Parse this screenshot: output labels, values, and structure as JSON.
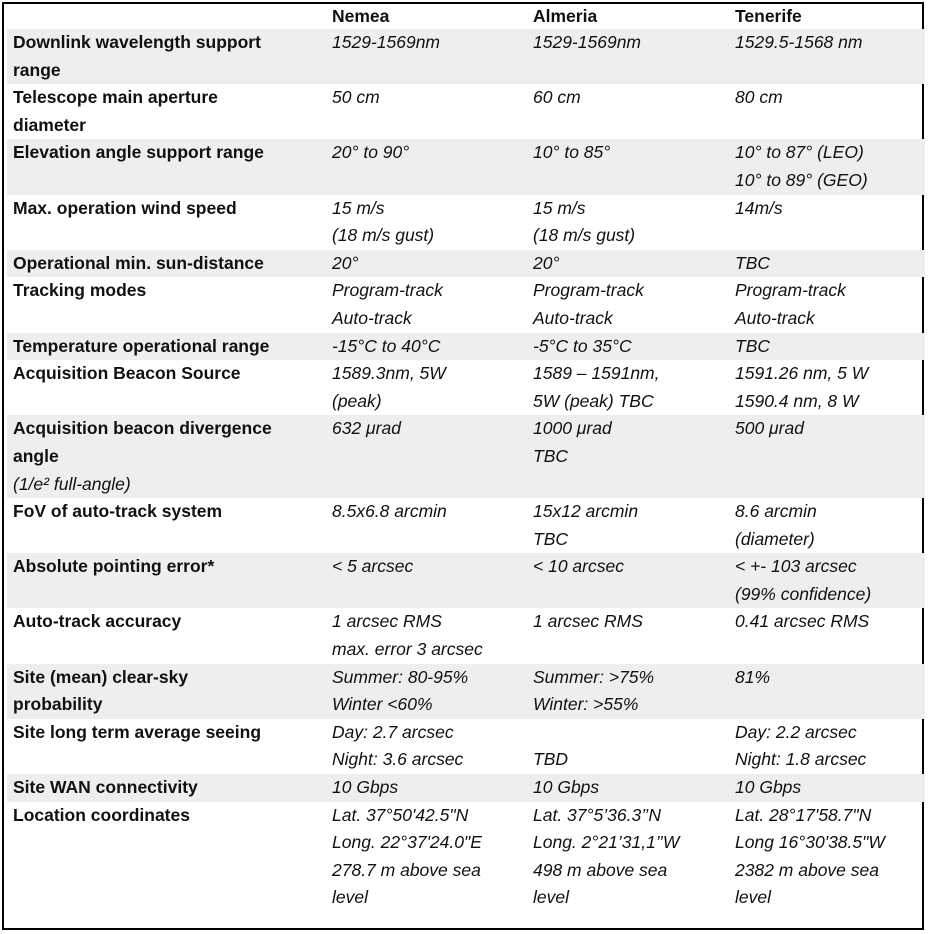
{
  "headers": [
    "",
    "Nemea",
    "Almeria",
    "Tenerife"
  ],
  "rows": [
    {
      "label": [
        "Downlink wavelength support",
        "range"
      ],
      "nemea": [
        "1529-1569nm"
      ],
      "almeria": [
        "1529-1569nm"
      ],
      "tenerife": [
        "1529.5-1568 nm"
      ]
    },
    {
      "label": [
        "Telescope main aperture",
        "diameter"
      ],
      "nemea": [
        "50 cm"
      ],
      "almeria": [
        "60 cm"
      ],
      "tenerife": [
        "80 cm"
      ]
    },
    {
      "label": [
        "Elevation angle support range"
      ],
      "nemea": [
        "20° to 90°"
      ],
      "almeria": [
        "10° to 85°"
      ],
      "tenerife": [
        "10° to 87° (LEO)",
        "10° to 89° (GEO)"
      ]
    },
    {
      "label": [
        "Max. operation wind speed"
      ],
      "nemea": [
        "15 m/s",
        "(18 m/s gust)"
      ],
      "almeria": [
        "15 m/s",
        "(18 m/s gust)"
      ],
      "tenerife": [
        "14m/s"
      ]
    },
    {
      "label": [
        "Operational min. sun-distance"
      ],
      "nemea": [
        "20°"
      ],
      "almeria": [
        "20°"
      ],
      "tenerife": [
        "TBC"
      ]
    },
    {
      "label": [
        "Tracking modes"
      ],
      "nemea": [
        "Program-track",
        "Auto-track"
      ],
      "almeria": [
        "Program-track",
        "Auto-track"
      ],
      "tenerife": [
        "Program-track",
        "Auto-track"
      ]
    },
    {
      "label": [
        "Temperature operational range"
      ],
      "nemea": [
        "-15°C to 40°C"
      ],
      "almeria": [
        "-5°C to 35°C"
      ],
      "tenerife": [
        "TBC"
      ]
    },
    {
      "label": [
        "Acquisition Beacon Source"
      ],
      "nemea": [
        "1589.3nm, 5W",
        "(peak)"
      ],
      "almeria": [
        "1589 – 1591nm,",
        "5W (peak) TBC"
      ],
      "tenerife": [
        "1591.26 nm, 5 W",
        "1590.4 nm, 8 W"
      ]
    },
    {
      "label": [
        "Acquisition beacon divergence",
        "angle"
      ],
      "label_sub": "(1/e² full-angle)",
      "nemea": [
        "632 μrad"
      ],
      "almeria": [
        "1000 μrad",
        "TBC"
      ],
      "tenerife": [
        "500 μrad"
      ]
    },
    {
      "label": [
        "FoV of auto-track system"
      ],
      "nemea": [
        "8.5x6.8 arcmin"
      ],
      "almeria": [
        "15x12 arcmin",
        "TBC"
      ],
      "tenerife": [
        "8.6 arcmin",
        "(diameter)"
      ]
    },
    {
      "label": [
        "Absolute pointing error*"
      ],
      "nemea": [
        "< 5 arcsec"
      ],
      "almeria": [
        "< 10 arcsec"
      ],
      "tenerife": [
        "< +- 103 arcsec",
        "(99% confidence)"
      ]
    },
    {
      "label": [
        "Auto-track accuracy"
      ],
      "nemea": [
        "1 arcsec RMS",
        "max. error 3 arcsec"
      ],
      "almeria": [
        "1 arcsec RMS"
      ],
      "tenerife": [
        "0.41 arcsec RMS"
      ]
    },
    {
      "label": [
        "Site (mean) clear-sky",
        "probability"
      ],
      "nemea": [
        "Summer: 80-95%",
        "Winter <60%"
      ],
      "almeria": [
        "Summer: >75%",
        "Winter: >55%"
      ],
      "tenerife": [
        "81%"
      ]
    },
    {
      "label": [
        "Site long term average seeing"
      ],
      "nemea": [
        "Day: 2.7 arcsec",
        "Night: 3.6 arcsec"
      ],
      "almeria": [
        "",
        "TBD"
      ],
      "tenerife": [
        "Day: 2.2 arcsec",
        "Night: 1.8 arcsec"
      ]
    },
    {
      "label": [
        "Site WAN connectivity"
      ],
      "nemea": [
        "10 Gbps"
      ],
      "almeria": [
        "10 Gbps"
      ],
      "tenerife": [
        "10 Gbps"
      ]
    },
    {
      "label": [
        "Location coordinates"
      ],
      "nemea": [
        "Lat. 37°50'42.5\"N",
        "Long. 22°37'24.0\"E",
        "278.7 m above sea",
        "level"
      ],
      "almeria": [
        "Lat. 37°5’36.3’’N",
        "Long. 2°21’31,1’’W",
        "498 m above sea",
        "level"
      ],
      "tenerife": [
        "Lat. 28°17'58.7\"N",
        "Long 16°30'38.5\"W",
        "2382 m above sea",
        "level"
      ]
    }
  ]
}
